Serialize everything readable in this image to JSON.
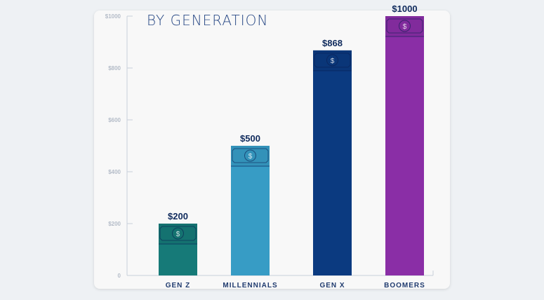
{
  "chart_data": {
    "type": "bar",
    "title": "BY GENERATION",
    "categories": [
      "GEN Z",
      "MILLENNIALS",
      "GEN X",
      "BOOMERS"
    ],
    "values": [
      200,
      500,
      868,
      1000
    ],
    "data_labels": [
      "$200",
      "$500",
      "$868",
      "$1000"
    ],
    "colors": [
      "#167a78",
      "#379cc5",
      "#0b3a80",
      "#8a2ea6"
    ],
    "ylim": [
      0,
      1000
    ],
    "yticks": [
      0,
      200,
      400,
      600,
      800,
      1000
    ],
    "ytick_labels": [
      "0",
      "$200",
      "$400",
      "$600",
      "$800",
      "$1000"
    ],
    "xlabel": "",
    "ylabel": "",
    "grid": false,
    "bar_icon": "dollar-bill-icon"
  }
}
